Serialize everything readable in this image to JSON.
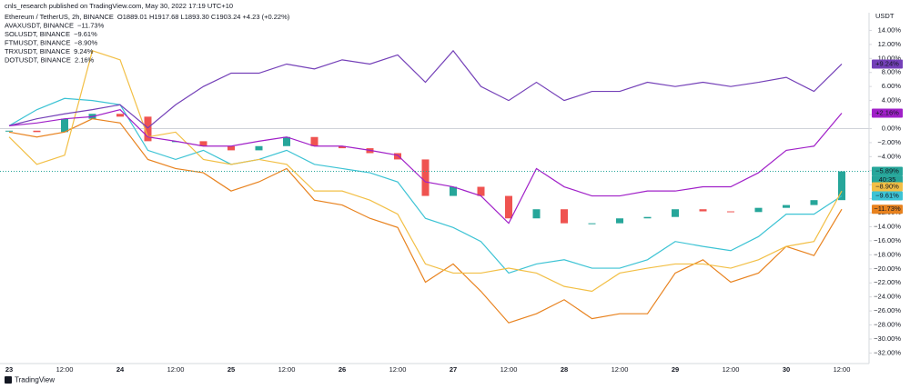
{
  "header": "cnls_research published on TradingView.com, May 30, 2022 17:19 UTC+10",
  "footer": "TradingView",
  "chart_data": {
    "type": "line",
    "axis_title": "USDT",
    "categories": [
      "23",
      null,
      "12:00",
      null,
      "24",
      null,
      "12:00",
      null,
      "25",
      null,
      "12:00",
      null,
      "26",
      null,
      "12:00",
      null,
      "27",
      null,
      "12:00",
      null,
      "28",
      null,
      "12:00",
      null,
      "29",
      null,
      "12:00",
      null,
      "30",
      null,
      "12:00"
    ],
    "ylim": [
      -33.5,
      16
    ],
    "yticks": [
      {
        "value": 14,
        "label": "14.00%"
      },
      {
        "value": 12,
        "label": "12.00%"
      },
      {
        "value": 10,
        "label": "10.00%"
      },
      {
        "value": 8,
        "label": "8.00%"
      },
      {
        "value": 6,
        "label": "6.00%"
      },
      {
        "value": 4,
        "label": "4.00%"
      },
      {
        "value": 2,
        "label": "2.00%"
      },
      {
        "value": 0,
        "label": "0.00%"
      },
      {
        "value": -2,
        "label": "−2.00%"
      },
      {
        "value": -4,
        "label": "−4.00%"
      },
      {
        "value": -6,
        "label": "−6.00%"
      },
      {
        "value": -8,
        "label": "−8.00%"
      },
      {
        "value": -10,
        "label": "−10.00%"
      },
      {
        "value": -12,
        "label": "−12.00%"
      },
      {
        "value": -14,
        "label": "−14.00%"
      },
      {
        "value": -16,
        "label": "−16.00%"
      },
      {
        "value": -18,
        "label": "−18.00%"
      },
      {
        "value": -20,
        "label": "−20.00%"
      },
      {
        "value": -22,
        "label": "−22.00%"
      },
      {
        "value": -24,
        "label": "−24.00%"
      },
      {
        "value": -26,
        "label": "−26.00%"
      },
      {
        "value": -28,
        "label": "−28.00%"
      },
      {
        "value": -30,
        "label": "−30.00%"
      },
      {
        "value": -32,
        "label": "−32.00%"
      }
    ],
    "series": [
      {
        "name": "Ethereum / TetherUS, 2h, BINANCE",
        "kind": "candlestick",
        "color": "#26a69a",
        "down_color": "#ef5350",
        "ohlc": "O1889.01 H1917.68 L1893.30 C1903.24 +4.23 (+0.22%)",
        "last_value_label": "−5.89%",
        "countdown": "40:35",
        "values": [
          -0.3,
          -0.5,
          1.4,
          2.1,
          1.7,
          -1.8,
          -1.8,
          -2.5,
          -3.1,
          -2.5,
          -1.2,
          -2.5,
          -2.8,
          -3.5,
          -4.4,
          -9.6,
          -8.3,
          -9.6,
          -12.8,
          -11.5,
          -13.5,
          -13.5,
          -12.8,
          -12.6,
          -11.5,
          -11.8,
          -11.9,
          -11.3,
          -10.9,
          -10.2,
          -6.1
        ]
      },
      {
        "name": "AVAXUSDT, BINANCE",
        "color": "#e8821e",
        "last_value_label": "−11.73%",
        "values": [
          -0.5,
          -1.2,
          -0.5,
          1.4,
          0.8,
          -4.4,
          -5.7,
          -6.3,
          -8.9,
          -7.6,
          -5.7,
          -10.2,
          -10.9,
          -12.8,
          -14.1,
          -21.9,
          -19.3,
          -23.2,
          -27.7,
          -26.4,
          -24.4,
          -27.1,
          -26.4,
          -26.4,
          -20.6,
          -18.7,
          -21.9,
          -20.6,
          -16.8,
          -18.1,
          -11.5
        ]
      },
      {
        "name": "SOLUSDT, BINANCE",
        "color": "#3cc3d4",
        "last_value_label": "−9.61%",
        "values": [
          0.4,
          2.7,
          4.3,
          4.0,
          3.4,
          -3.1,
          -4.4,
          -3.1,
          -5.1,
          -4.4,
          -3.1,
          -5.1,
          -5.7,
          -6.3,
          -7.6,
          -12.8,
          -14.1,
          -16.1,
          -20.6,
          -19.3,
          -18.7,
          -19.9,
          -19.9,
          -18.7,
          -16.1,
          -16.8,
          -17.4,
          -15.4,
          -12.2,
          -12.2,
          -9.6
        ]
      },
      {
        "name": "FTMUSDT, BINANCE",
        "color": "#f2bf45",
        "last_value_label": "−8.90%",
        "values": [
          -1.2,
          -5.1,
          -3.8,
          11.1,
          9.8,
          -1.2,
          -0.5,
          -4.4,
          -5.1,
          -4.4,
          -5.1,
          -8.9,
          -8.9,
          -10.2,
          -12.2,
          -19.3,
          -20.6,
          -20.6,
          -19.9,
          -20.6,
          -22.5,
          -23.2,
          -20.6,
          -19.9,
          -19.3,
          -19.3,
          -19.9,
          -18.7,
          -16.8,
          -16.1,
          -8.9
        ]
      },
      {
        "name": "TRXUSDT, BINANCE",
        "color": "#7440b8",
        "last_value_label": "9.24%",
        "axis_value_label": "+9.24%",
        "values": [
          0.4,
          1.4,
          2.1,
          2.7,
          3.4,
          0.1,
          3.4,
          6.0,
          7.9,
          7.9,
          9.2,
          8.5,
          9.8,
          9.2,
          10.5,
          6.6,
          11.1,
          6.0,
          4.0,
          6.6,
          4.0,
          5.3,
          5.3,
          6.6,
          6.0,
          6.6,
          6.0,
          6.6,
          7.3,
          5.3,
          9.2
        ]
      },
      {
        "name": "DOTUSDT, BINANCE",
        "color": "#a020c8",
        "last_value_label": "2.16%",
        "axis_value_label": "+2.16%",
        "values": [
          0.4,
          0.8,
          1.4,
          1.7,
          2.7,
          -1.2,
          -1.8,
          -2.5,
          -2.5,
          -1.8,
          -1.2,
          -2.5,
          -2.5,
          -3.1,
          -3.8,
          -7.6,
          -8.3,
          -9.6,
          -13.5,
          -5.7,
          -8.3,
          -9.6,
          -9.6,
          -8.9,
          -8.9,
          -8.3,
          -8.3,
          -6.3,
          -3.1,
          -2.5,
          2.2
        ]
      }
    ]
  }
}
